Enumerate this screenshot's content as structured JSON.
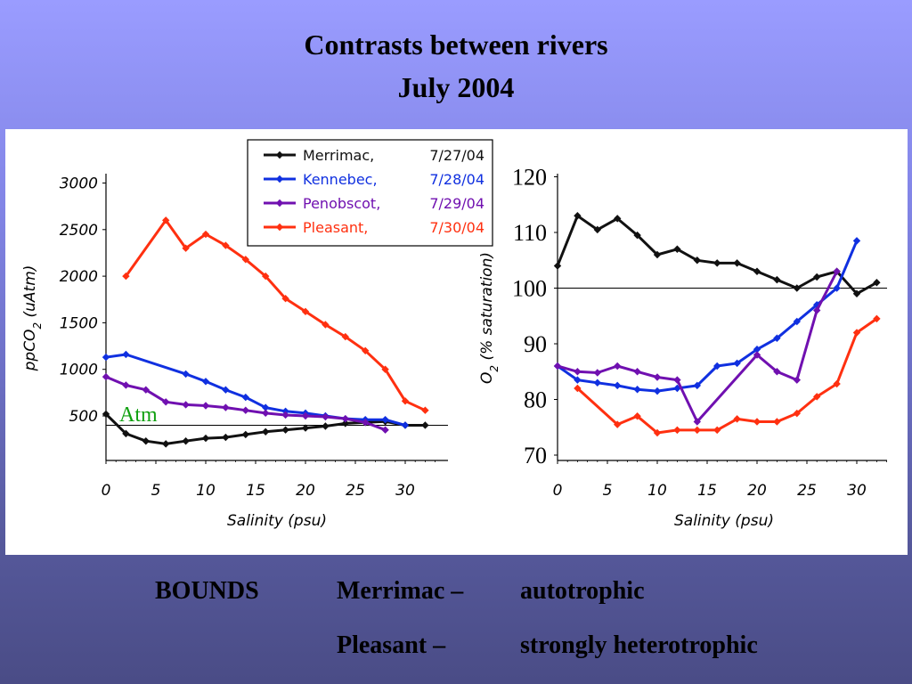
{
  "slide": {
    "title_line1": "Contrasts between rivers",
    "title_line2": "July 2004"
  },
  "colors": {
    "merrimac": "#111111",
    "kennebec": "#1030e0",
    "penobscot": "#7010b0",
    "pleasant": "#ff3010",
    "atm_label": "#10a010"
  },
  "legend": [
    {
      "river": "Merrimac,",
      "date": "7/27/04",
      "key": "merrimac"
    },
    {
      "river": "Kennebec,",
      "date": "7/28/04",
      "key": "kennebec"
    },
    {
      "river": "Penobscot,",
      "date": "7/29/04",
      "key": "penobscot"
    },
    {
      "river": "Pleasant,",
      "date": "7/30/04",
      "key": "pleasant"
    }
  ],
  "annotation": {
    "atm": "Atm"
  },
  "chart_data": [
    {
      "type": "line",
      "xlabel": "Salinity (psu)",
      "ylabel": "ppCO2 (uAtm)",
      "xlim": [
        0,
        34
      ],
      "ylim": [
        100,
        3200
      ],
      "xticks": [
        "0",
        "5",
        "10",
        "15",
        "20",
        "25",
        "30"
      ],
      "yticks": [
        "500",
        "1000",
        "1500",
        "2000",
        "2500",
        "3000"
      ],
      "reference_line": {
        "y": 400,
        "label": "Atm"
      },
      "series": [
        {
          "name": "Merrimac, 7/27/04",
          "key": "merrimac",
          "x": [
            0,
            2,
            4,
            6,
            8,
            10,
            12,
            14,
            16,
            18,
            20,
            22,
            24,
            26,
            28,
            30,
            32
          ],
          "y": [
            520,
            310,
            230,
            200,
            230,
            260,
            270,
            300,
            330,
            350,
            370,
            390,
            420,
            430,
            440,
            400,
            400
          ]
        },
        {
          "name": "Kennebec, 7/28/04",
          "key": "kennebec",
          "x": [
            0,
            2,
            8,
            10,
            12,
            14,
            16,
            18,
            20,
            22,
            24,
            26,
            28,
            30
          ],
          "y": [
            1130,
            1160,
            950,
            870,
            780,
            700,
            590,
            550,
            530,
            500,
            470,
            460,
            460,
            400
          ]
        },
        {
          "name": "Penobscot, 7/29/04",
          "key": "penobscot",
          "x": [
            0,
            2,
            4,
            6,
            8,
            10,
            12,
            14,
            16,
            18,
            20,
            22,
            24,
            26,
            28
          ],
          "y": [
            920,
            830,
            780,
            650,
            620,
            610,
            590,
            560,
            530,
            510,
            500,
            490,
            470,
            430,
            350
          ]
        },
        {
          "name": "Pleasant, 7/30/04",
          "key": "pleasant",
          "x": [
            2,
            6,
            8,
            10,
            12,
            14,
            16,
            18,
            20,
            22,
            24,
            26,
            28,
            30,
            32
          ],
          "y": [
            2000,
            2600,
            2300,
            2450,
            2330,
            2180,
            2000,
            1760,
            1620,
            1480,
            1350,
            1200,
            1000,
            660,
            560
          ]
        }
      ]
    },
    {
      "type": "line",
      "xlabel": "Salinity (psu)",
      "ylabel": "O2 (% saturation)",
      "xlim": [
        0,
        34
      ],
      "ylim": [
        69,
        122
      ],
      "xticks": [
        "0",
        "5",
        "10",
        "15",
        "20",
        "25",
        "30"
      ],
      "yticks": [
        "70",
        "80",
        "90",
        "100",
        "110",
        "120"
      ],
      "reference_line": {
        "y": 100
      },
      "series": [
        {
          "name": "Merrimac, 7/27/04",
          "key": "merrimac",
          "x": [
            0,
            2,
            4,
            6,
            8,
            10,
            12,
            14,
            16,
            18,
            20,
            22,
            24,
            26,
            28,
            30,
            32
          ],
          "y": [
            104,
            113,
            110.5,
            112.5,
            109.5,
            106,
            107,
            105,
            104.5,
            104.5,
            103,
            101.5,
            100,
            102,
            103,
            99,
            101
          ]
        },
        {
          "name": "Kennebec, 7/28/04",
          "key": "kennebec",
          "x": [
            0,
            2,
            4,
            6,
            8,
            10,
            12,
            14,
            16,
            18,
            20,
            22,
            24,
            26,
            28,
            30
          ],
          "y": [
            86,
            83.5,
            83,
            82.5,
            81.8,
            81.5,
            82,
            82.5,
            86,
            86.5,
            89,
            91,
            94,
            97,
            100,
            108.5
          ]
        },
        {
          "name": "Penobscot, 7/29/04",
          "key": "penobscot",
          "x": [
            0,
            2,
            4,
            6,
            8,
            10,
            12,
            14,
            20,
            22,
            24,
            26,
            28
          ],
          "y": [
            86,
            85,
            84.8,
            86,
            85,
            84,
            83.5,
            76,
            88,
            85,
            83.5,
            96,
            103
          ]
        },
        {
          "name": "Pleasant, 7/30/04",
          "key": "pleasant",
          "x": [
            2,
            6,
            8,
            10,
            12,
            14,
            16,
            18,
            20,
            22,
            24,
            26,
            28,
            30,
            32
          ],
          "y": [
            82,
            75.5,
            77,
            74,
            74.5,
            74.5,
            74.5,
            76.5,
            76,
            76,
            77.5,
            80.5,
            82.8,
            92,
            94.5
          ]
        }
      ]
    }
  ],
  "notes": {
    "bounds": "BOUNDS",
    "row1_river": "Merrimac –",
    "row1_value": "autotrophic",
    "row2_river": "Pleasant –",
    "row2_value": "strongly heterotrophic"
  }
}
